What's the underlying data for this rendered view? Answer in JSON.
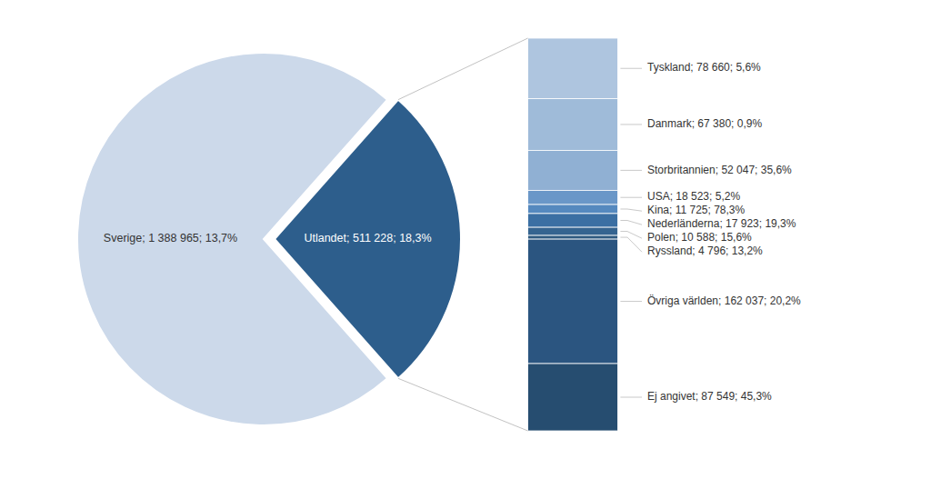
{
  "chart_data": [
    {
      "type": "pie",
      "values": [
        1388965,
        511228
      ],
      "value_labels": [
        "Sverige; 1 388 965; 13,7%",
        "Utlandet; 511 228; 18,3%"
      ],
      "colors": [
        "#ccd9ea",
        "#2d5e8c"
      ],
      "data_labels": true
    },
    {
      "type": "bar",
      "stacked": true,
      "categories": [
        null
      ],
      "tick_labels": false,
      "data_labels": true,
      "series": [
        {
          "values": [
            78660
          ],
          "value_labels": [
            "Tyskland; 78 660; 5,6%"
          ],
          "color": "#aec5df"
        },
        {
          "values": [
            67380
          ],
          "value_labels": [
            "Danmark; 67 380; 0,9%"
          ],
          "color": "#9fbbd9"
        },
        {
          "values": [
            52047
          ],
          "value_labels": [
            "Storbritannien; 52 047; 35,6%"
          ],
          "color": "#90b0d3"
        },
        {
          "values": [
            18523
          ],
          "value_labels": [
            "USA; 18 523; 5,2%"
          ],
          "color": "#6a97c8"
        },
        {
          "values": [
            11725
          ],
          "value_labels": [
            "Kina; 11 725; 78,3%"
          ],
          "color": "#5589bf"
        },
        {
          "values": [
            17923
          ],
          "value_labels": [
            "Nederländerna; 17 923; 19,3%"
          ],
          "color": "#3b6fa3"
        },
        {
          "values": [
            10588
          ],
          "value_labels": [
            "Polen; 10 588; 15,6%"
          ],
          "color": "#356490"
        },
        {
          "values": [
            4796
          ],
          "value_labels": [
            "Ryssland; 4 796; 13,2%"
          ],
          "color": "#2f5a80"
        },
        {
          "values": [
            162037
          ],
          "value_labels": [
            "Övriga världen; 162 037; 20,2%"
          ],
          "color": "#2b5580"
        },
        {
          "values": [
            87549
          ],
          "value_labels": [
            "Ej angivet; 87 549; 45,3%"
          ],
          "color": "#264d70"
        }
      ]
    }
  ]
}
